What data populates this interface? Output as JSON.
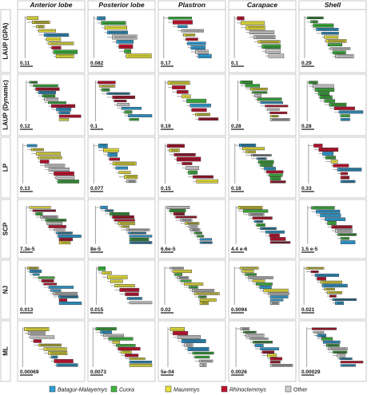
{
  "columns": [
    "Anterior lobe",
    "Posterior lobe",
    "Plastron",
    "Carapace",
    "Shell"
  ],
  "rows": [
    "LAUP (GPA)",
    "LAUP (Dynamic)",
    "LP",
    "SCP",
    "NJ",
    "ML"
  ],
  "scale_labels": [
    [
      "0.11",
      "0.082",
      "0.17",
      "0.1",
      "0.29"
    ],
    [
      "0.12",
      "0.1",
      "0.19",
      "0.28",
      "0.28"
    ],
    [
      "0.13",
      "0.077",
      "0.15",
      "0.18",
      "0.33"
    ],
    [
      "7.3e-5",
      "8e-5",
      "6.6e-5",
      "4.4 e-6",
      "1.5 e-5"
    ],
    [
      "0.013",
      "0.015",
      "0.02",
      "0.0094",
      "0.021"
    ],
    [
      "0.00069",
      "0.0073",
      "5e-04",
      "0.0026",
      "0.00029"
    ]
  ],
  "legend": [
    {
      "label": "Batagur-Malayemys",
      "color": "#2e9fd6",
      "italic": true
    },
    {
      "label": "Cuora",
      "color": "#3cb43c",
      "italic": true
    },
    {
      "label": "Mauremys",
      "color": "#e8e23a",
      "italic": true
    },
    {
      "label": "Rhinoclemmys",
      "color": "#c0102e",
      "italic": true
    },
    {
      "label": "Other",
      "color": "#cfcfcf",
      "italic": false
    }
  ],
  "colors": {
    "batagur": "#2e9fd6",
    "cuora": "#3cb43c",
    "mauremys": "#e8e23a",
    "rhinoclemmys": "#c0102e",
    "other": "#cfcfcf",
    "branch": "#999999"
  }
}
